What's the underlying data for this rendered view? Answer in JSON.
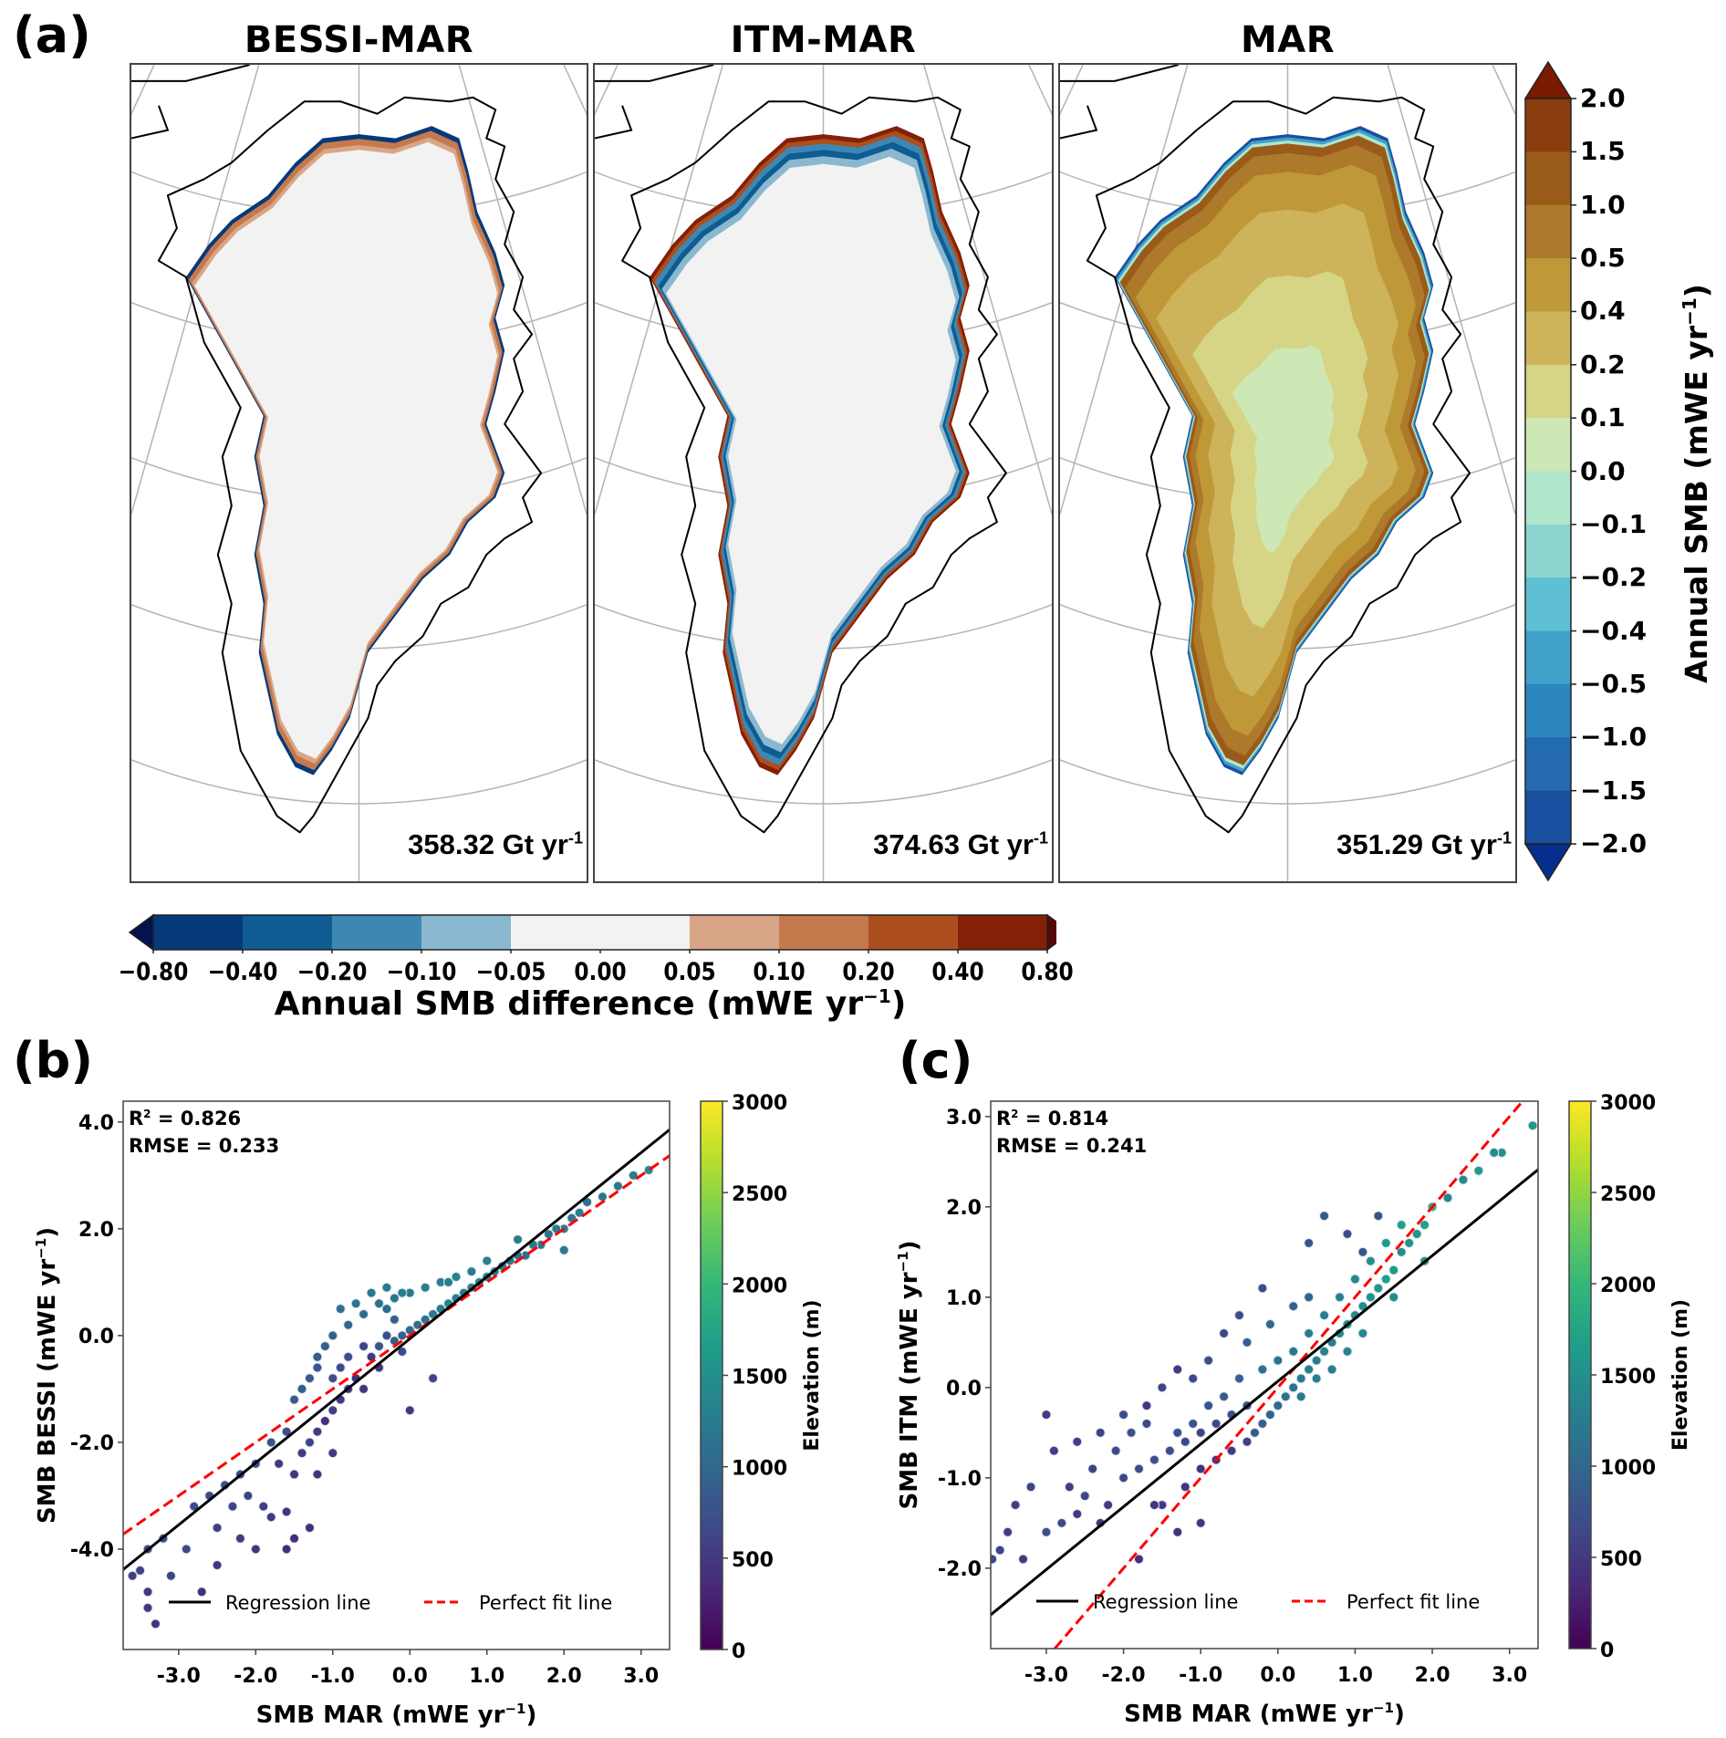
{
  "figure": {
    "panel_labels": {
      "a": "(a)",
      "b": "(b)",
      "c": "(c)"
    }
  },
  "maps": {
    "panels": [
      {
        "title": "BESSI-MAR",
        "total_value": "358.32",
        "total_unit": "Gt yr",
        "total_exp": "-1",
        "mode": "diff",
        "scheme": "bessi"
      },
      {
        "title": "ITM-MAR",
        "total_value": "374.63",
        "total_unit": "Gt yr",
        "total_exp": "-1",
        "mode": "diff",
        "scheme": "itm"
      },
      {
        "title": "MAR",
        "total_value": "351.29",
        "total_unit": "Gt yr",
        "total_exp": "-1",
        "mode": "abs",
        "scheme": "mar"
      }
    ]
  },
  "chart_data": [
    {
      "type": "heatmap",
      "title": "Annual SMB maps (BESSI-MAR, ITM-MAR, MAR)",
      "colorbar_smb": {
        "label": "Annual SMB (mWE yr",
        "label_exp": "−1",
        "label_close": ")",
        "ticks": [
          "2.0",
          "1.5",
          "1.0",
          "0.5",
          "0.4",
          "0.2",
          "0.1",
          "0.0",
          "−0.1",
          "−0.2",
          "−0.4",
          "−0.5",
          "−1.0",
          "−1.5",
          "−2.0"
        ],
        "colors_top_to_bottom": [
          "#8a3e10",
          "#9a5a1a",
          "#ac7a2a",
          "#bf9838",
          "#cdb35a",
          "#d5d585",
          "#cde8b4",
          "#b0e6cc",
          "#8ad6cf",
          "#5ec0d2",
          "#40a2ca",
          "#2e86bf",
          "#246ab0",
          "#1a4fa0"
        ],
        "extend_max_color": "#7a1a00",
        "extend_min_color": "#062e8c",
        "range": [
          -2.0,
          2.0
        ]
      },
      "colorbar_diff": {
        "label": "Annual SMB difference (mWE yr",
        "label_exp": "−1",
        "label_close": ")",
        "ticks": [
          "−0.80",
          "−0.40",
          "−0.20",
          "−0.10",
          "−0.05",
          "0.00",
          "0.05",
          "0.10",
          "0.20",
          "0.40",
          "0.80"
        ],
        "colors_left_to_right": [
          "#053a7a",
          "#0e5c92",
          "#3e87b2",
          "#8ab8d0",
          "#f2f2f2",
          "#f2f2f2",
          "#d8a686",
          "#c57a4e",
          "#ad4e1e",
          "#842007"
        ],
        "extend_min_color": "#02134f",
        "extend_max_color": "#5a0505",
        "range": [
          -0.8,
          0.8
        ]
      }
    },
    {
      "type": "scatter",
      "title": "",
      "xlabel": "SMB MAR (mWE yr",
      "xlabel_exp": "−1",
      "ylabel": "SMB BESSI (mWE yr",
      "ylabel_exp": "−1",
      "xlim": [
        -3.72,
        3.37
      ],
      "ylim": [
        -5.88,
        4.39
      ],
      "xticks": [
        -3,
        -2,
        -1,
        0,
        1,
        2,
        3
      ],
      "xtick_labels": [
        "-3.0",
        "-2.0",
        "-1.0",
        "0.0",
        "1.0",
        "2.0",
        "3.0"
      ],
      "yticks": [
        -4,
        -2,
        0,
        2,
        4
      ],
      "ytick_labels": [
        "-4.0",
        "-2.0",
        "0.0",
        "2.0",
        "4.0"
      ],
      "r2_label": "R",
      "r2_value": " = 0.826",
      "rmse_label": "RMSE = 0.233",
      "regression": {
        "slope": 1.162,
        "intercept": -0.06
      },
      "perfect_fit": {
        "slope": 1.0,
        "intercept": 0.0
      },
      "legend": {
        "regression_label": "Regression line",
        "perfect_label": "Perfect fit line",
        "position": "lower-center"
      },
      "colorbar": {
        "label": "Elevation (m)",
        "ticks": [
          0,
          500,
          1000,
          1500,
          2000,
          2500,
          3000
        ],
        "range": [
          0,
          3000
        ],
        "cmap": "viridis"
      },
      "points": [
        [
          3.1,
          3.1,
          1400
        ],
        [
          2.9,
          3.0,
          1300
        ],
        [
          2.7,
          2.8,
          1250
        ],
        [
          2.5,
          2.6,
          1200
        ],
        [
          2.3,
          2.5,
          1100
        ],
        [
          2.2,
          2.3,
          1350
        ],
        [
          2.1,
          2.2,
          1200
        ],
        [
          2.0,
          2.0,
          1250
        ],
        [
          1.9,
          2.0,
          1300
        ],
        [
          1.8,
          1.9,
          1150
        ],
        [
          1.7,
          1.7,
          1200
        ],
        [
          1.6,
          1.7,
          1250
        ],
        [
          1.5,
          1.5,
          1100
        ],
        [
          1.4,
          1.5,
          1150
        ],
        [
          1.3,
          1.4,
          1200
        ],
        [
          1.2,
          1.3,
          1250
        ],
        [
          1.1,
          1.2,
          1300
        ],
        [
          1.0,
          1.1,
          1350
        ],
        [
          0.9,
          1.0,
          1400
        ],
        [
          0.8,
          0.9,
          1300
        ],
        [
          0.7,
          0.8,
          1200
        ],
        [
          0.6,
          0.7,
          1300
        ],
        [
          0.5,
          0.6,
          1350
        ],
        [
          0.4,
          0.5,
          1250
        ],
        [
          0.3,
          0.4,
          1200
        ],
        [
          0.2,
          0.3,
          1150
        ],
        [
          0.1,
          0.2,
          1100
        ],
        [
          0.0,
          0.1,
          1000
        ],
        [
          -0.1,
          0.0,
          950
        ],
        [
          -0.2,
          -0.1,
          900
        ],
        [
          1.0,
          1.4,
          1300
        ],
        [
          0.8,
          1.2,
          1250
        ],
        [
          0.6,
          1.1,
          1350
        ],
        [
          0.4,
          1.0,
          1300
        ],
        [
          0.2,
          0.9,
          1250
        ],
        [
          0.0,
          0.8,
          1200
        ],
        [
          -0.2,
          0.7,
          1150
        ],
        [
          -0.4,
          0.6,
          1100
        ],
        [
          -0.6,
          0.4,
          1050
        ],
        [
          -0.8,
          0.2,
          1000
        ],
        [
          -1.0,
          0.0,
          950
        ],
        [
          -1.1,
          -0.2,
          900
        ],
        [
          -1.2,
          -0.4,
          850
        ],
        [
          -1.2,
          -0.6,
          800
        ],
        [
          -1.3,
          -0.8,
          850
        ],
        [
          -1.4,
          -1.0,
          900
        ],
        [
          -1.5,
          -1.2,
          850
        ],
        [
          -0.9,
          0.5,
          1100
        ],
        [
          -0.7,
          0.6,
          1150
        ],
        [
          -0.5,
          0.8,
          1200
        ],
        [
          -0.3,
          0.9,
          1250
        ],
        [
          -0.1,
          0.8,
          1300
        ],
        [
          -0.6,
          -0.2,
          600
        ],
        [
          -0.5,
          -0.4,
          500
        ],
        [
          -0.4,
          -0.6,
          450
        ],
        [
          -0.7,
          -0.8,
          400
        ],
        [
          -0.8,
          -1.0,
          450
        ],
        [
          -0.9,
          -1.2,
          500
        ],
        [
          -1.0,
          -1.4,
          550
        ],
        [
          -0.6,
          -1.0,
          450
        ],
        [
          -1.1,
          -1.6,
          400
        ],
        [
          -1.2,
          -1.8,
          500
        ],
        [
          -1.3,
          -2.0,
          600
        ],
        [
          -1.4,
          -2.2,
          550
        ],
        [
          -1.6,
          -1.8,
          700
        ],
        [
          -1.8,
          -2.0,
          750
        ],
        [
          -1.7,
          -2.4,
          500
        ],
        [
          -1.5,
          -2.6,
          450
        ],
        [
          -1.2,
          -2.6,
          400
        ],
        [
          -1.0,
          -2.2,
          500
        ],
        [
          -2.0,
          -2.4,
          700
        ],
        [
          -2.2,
          -2.6,
          650
        ],
        [
          -2.4,
          -2.8,
          700
        ],
        [
          -2.1,
          -3.0,
          600
        ],
        [
          -1.9,
          -3.2,
          550
        ],
        [
          -1.6,
          -3.3,
          450
        ],
        [
          -1.3,
          -3.6,
          400
        ],
        [
          -1.5,
          -3.8,
          350
        ],
        [
          -1.8,
          -3.4,
          500
        ],
        [
          -2.3,
          -3.2,
          600
        ],
        [
          -2.6,
          -3.0,
          650
        ],
        [
          -2.8,
          -3.2,
          700
        ],
        [
          -2.5,
          -3.6,
          550
        ],
        [
          -2.2,
          -3.8,
          500
        ],
        [
          -2.0,
          -4.0,
          450
        ],
        [
          -2.9,
          -4.0,
          650
        ],
        [
          -3.2,
          -3.8,
          700
        ],
        [
          -3.4,
          -4.0,
          650
        ],
        [
          -3.5,
          -4.4,
          600
        ],
        [
          -3.6,
          -4.5,
          550
        ],
        [
          -3.4,
          -4.8,
          500
        ],
        [
          -3.3,
          -5.4,
          450
        ],
        [
          -3.4,
          -5.1,
          500
        ],
        [
          -2.7,
          -4.8,
          400
        ],
        [
          -2.5,
          -4.3,
          450
        ],
        [
          -1.6,
          -4.0,
          350
        ],
        [
          -3.1,
          -4.5,
          600
        ],
        [
          0.3,
          -0.8,
          600
        ],
        [
          0.0,
          -1.4,
          500
        ],
        [
          2.0,
          1.6,
          1200
        ],
        [
          -0.2,
          0.3,
          900
        ],
        [
          -0.3,
          0.0,
          700
        ],
        [
          -0.1,
          -0.3,
          650
        ],
        [
          -0.4,
          -0.2,
          750
        ],
        [
          -0.8,
          -0.4,
          700
        ],
        [
          -0.9,
          -0.6,
          650
        ],
        [
          -1.0,
          -0.8,
          700
        ],
        [
          -0.3,
          0.5,
          1000
        ],
        [
          0.5,
          1.0,
          1300
        ],
        [
          1.4,
          1.8,
          1250
        ]
      ]
    },
    {
      "type": "scatter",
      "title": "",
      "xlabel": "SMB MAR (mWE yr",
      "xlabel_exp": "−1",
      "ylabel": "SMB ITM (mWE yr",
      "ylabel_exp": "−1",
      "xlim": [
        -3.72,
        3.37
      ],
      "ylim": [
        -2.89,
        3.17
      ],
      "xticks": [
        -3,
        -2,
        -1,
        0,
        1,
        2,
        3
      ],
      "xtick_labels": [
        "-3.0",
        "-2.0",
        "-1.0",
        "0.0",
        "1.0",
        "2.0",
        "3.0"
      ],
      "yticks": [
        -2,
        -1,
        0,
        1,
        2,
        3
      ],
      "ytick_labels": [
        "-2.0",
        "-1.0",
        "0.0",
        "1.0",
        "2.0",
        "3.0"
      ],
      "r2_label": "R",
      "r2_value": " = 0.814",
      "rmse_label": "RMSE = 0.241",
      "regression": {
        "slope": 0.695,
        "intercept": 0.07
      },
      "perfect_fit": {
        "slope": 1.0,
        "intercept": 0.0
      },
      "legend": {
        "regression_label": "Regression line",
        "perfect_label": "Perfect fit line",
        "position": "lower-center"
      },
      "colorbar": {
        "label": "Elevation (m)",
        "ticks": [
          0,
          500,
          1000,
          1500,
          2000,
          2500,
          3000
        ],
        "range": [
          0,
          3000
        ],
        "cmap": "viridis"
      },
      "points": [
        [
          3.3,
          2.9,
          1600
        ],
        [
          2.9,
          2.6,
          1500
        ],
        [
          2.8,
          2.6,
          1450
        ],
        [
          2.6,
          2.4,
          1600
        ],
        [
          2.4,
          2.3,
          1400
        ],
        [
          2.2,
          2.1,
          1350
        ],
        [
          2.0,
          2.0,
          1900
        ],
        [
          1.9,
          1.8,
          1700
        ],
        [
          1.8,
          1.7,
          1600
        ],
        [
          1.7,
          1.6,
          1500
        ],
        [
          1.6,
          1.5,
          1450
        ],
        [
          1.5,
          1.3,
          1600
        ],
        [
          1.4,
          1.2,
          1700
        ],
        [
          1.3,
          1.1,
          1550
        ],
        [
          1.2,
          1.0,
          1500
        ],
        [
          1.1,
          0.9,
          1450
        ],
        [
          1.0,
          0.8,
          1400
        ],
        [
          0.9,
          0.7,
          1450
        ],
        [
          0.8,
          0.6,
          1400
        ],
        [
          0.7,
          0.5,
          1300
        ],
        [
          0.6,
          0.4,
          1350
        ],
        [
          0.5,
          0.3,
          1300
        ],
        [
          0.4,
          0.2,
          1250
        ],
        [
          0.3,
          0.1,
          1200
        ],
        [
          0.2,
          0.0,
          1150
        ],
        [
          0.1,
          -0.1,
          1100
        ],
        [
          0.0,
          -0.2,
          1000
        ],
        [
          -0.1,
          -0.3,
          950
        ],
        [
          -0.2,
          -0.4,
          900
        ],
        [
          -0.3,
          -0.5,
          850
        ],
        [
          0.6,
          1.9,
          800
        ],
        [
          0.4,
          1.6,
          800
        ],
        [
          0.9,
          1.7,
          700
        ],
        [
          1.3,
          1.9,
          750
        ],
        [
          1.1,
          1.5,
          800
        ],
        [
          -0.2,
          1.1,
          700
        ],
        [
          -0.5,
          0.8,
          700
        ],
        [
          -0.7,
          0.6,
          650
        ],
        [
          -0.4,
          0.5,
          900
        ],
        [
          -0.1,
          0.7,
          1000
        ],
        [
          0.2,
          0.9,
          900
        ],
        [
          0.4,
          1.0,
          950
        ],
        [
          -0.9,
          0.3,
          700
        ],
        [
          -1.1,
          0.1,
          650
        ],
        [
          -1.3,
          0.2,
          500
        ],
        [
          -1.5,
          0.0,
          600
        ],
        [
          -1.7,
          -0.2,
          500
        ],
        [
          -2.0,
          -0.3,
          700
        ],
        [
          -2.3,
          -0.5,
          600
        ],
        [
          -2.6,
          -0.6,
          550
        ],
        [
          -2.9,
          -0.7,
          550
        ],
        [
          -3.2,
          -1.1,
          600
        ],
        [
          -3.5,
          -1.6,
          550
        ],
        [
          -3.6,
          -1.8,
          600
        ],
        [
          -3.3,
          -1.9,
          500
        ],
        [
          -3.0,
          -1.6,
          700
        ],
        [
          -2.8,
          -1.5,
          650
        ],
        [
          -2.5,
          -1.2,
          600
        ],
        [
          -2.2,
          -1.3,
          500
        ],
        [
          -2.0,
          -1.0,
          650
        ],
        [
          -1.8,
          -0.9,
          700
        ],
        [
          -1.6,
          -0.8,
          750
        ],
        [
          -1.4,
          -0.7,
          700
        ],
        [
          -1.2,
          -0.6,
          650
        ],
        [
          -1.0,
          -0.5,
          600
        ],
        [
          -0.8,
          -0.4,
          650
        ],
        [
          -0.6,
          -0.3,
          700
        ],
        [
          -0.4,
          -0.2,
          750
        ],
        [
          -1.5,
          -1.3,
          500
        ],
        [
          -1.2,
          -1.1,
          450
        ],
        [
          -1.0,
          -0.9,
          400
        ],
        [
          -0.8,
          -0.8,
          450
        ],
        [
          -0.6,
          -0.7,
          500
        ],
        [
          -0.4,
          -0.6,
          550
        ],
        [
          -1.3,
          -1.6,
          400
        ],
        [
          -1.0,
          -1.5,
          450
        ],
        [
          -1.8,
          -1.9,
          400
        ],
        [
          -1.6,
          -1.3,
          450
        ],
        [
          -3.0,
          -0.3,
          500
        ],
        [
          -2.7,
          -1.1,
          550
        ],
        [
          -0.2,
          0.2,
          1100
        ],
        [
          0.0,
          0.3,
          1150
        ],
        [
          0.2,
          0.4,
          1200
        ],
        [
          0.4,
          0.6,
          1250
        ],
        [
          0.6,
          0.8,
          1300
        ],
        [
          0.8,
          1.0,
          1350
        ],
        [
          1.0,
          1.2,
          1400
        ],
        [
          1.2,
          1.4,
          1500
        ],
        [
          1.4,
          1.6,
          1600
        ],
        [
          1.6,
          1.8,
          1700
        ],
        [
          -0.5,
          0.1,
          900
        ],
        [
          -0.7,
          -0.1,
          850
        ],
        [
          -0.9,
          -0.2,
          800
        ],
        [
          -1.1,
          -0.4,
          750
        ],
        [
          -1.3,
          -0.5,
          700
        ],
        [
          0.3,
          -0.1,
          1200
        ],
        [
          0.5,
          0.1,
          1250
        ],
        [
          0.7,
          0.2,
          1300
        ],
        [
          0.9,
          0.4,
          1350
        ],
        [
          1.1,
          0.6,
          1400
        ],
        [
          -2.4,
          -0.9,
          600
        ],
        [
          -2.1,
          -0.7,
          650
        ],
        [
          -1.9,
          -0.5,
          700
        ],
        [
          -1.7,
          -0.4,
          650
        ],
        [
          -2.3,
          -1.5,
          450
        ],
        [
          -2.6,
          -1.4,
          500
        ],
        [
          -3.4,
          -1.3,
          550
        ],
        [
          -3.7,
          -1.9,
          600
        ],
        [
          1.5,
          1.0,
          1450
        ],
        [
          1.9,
          1.4,
          1600
        ]
      ]
    }
  ]
}
